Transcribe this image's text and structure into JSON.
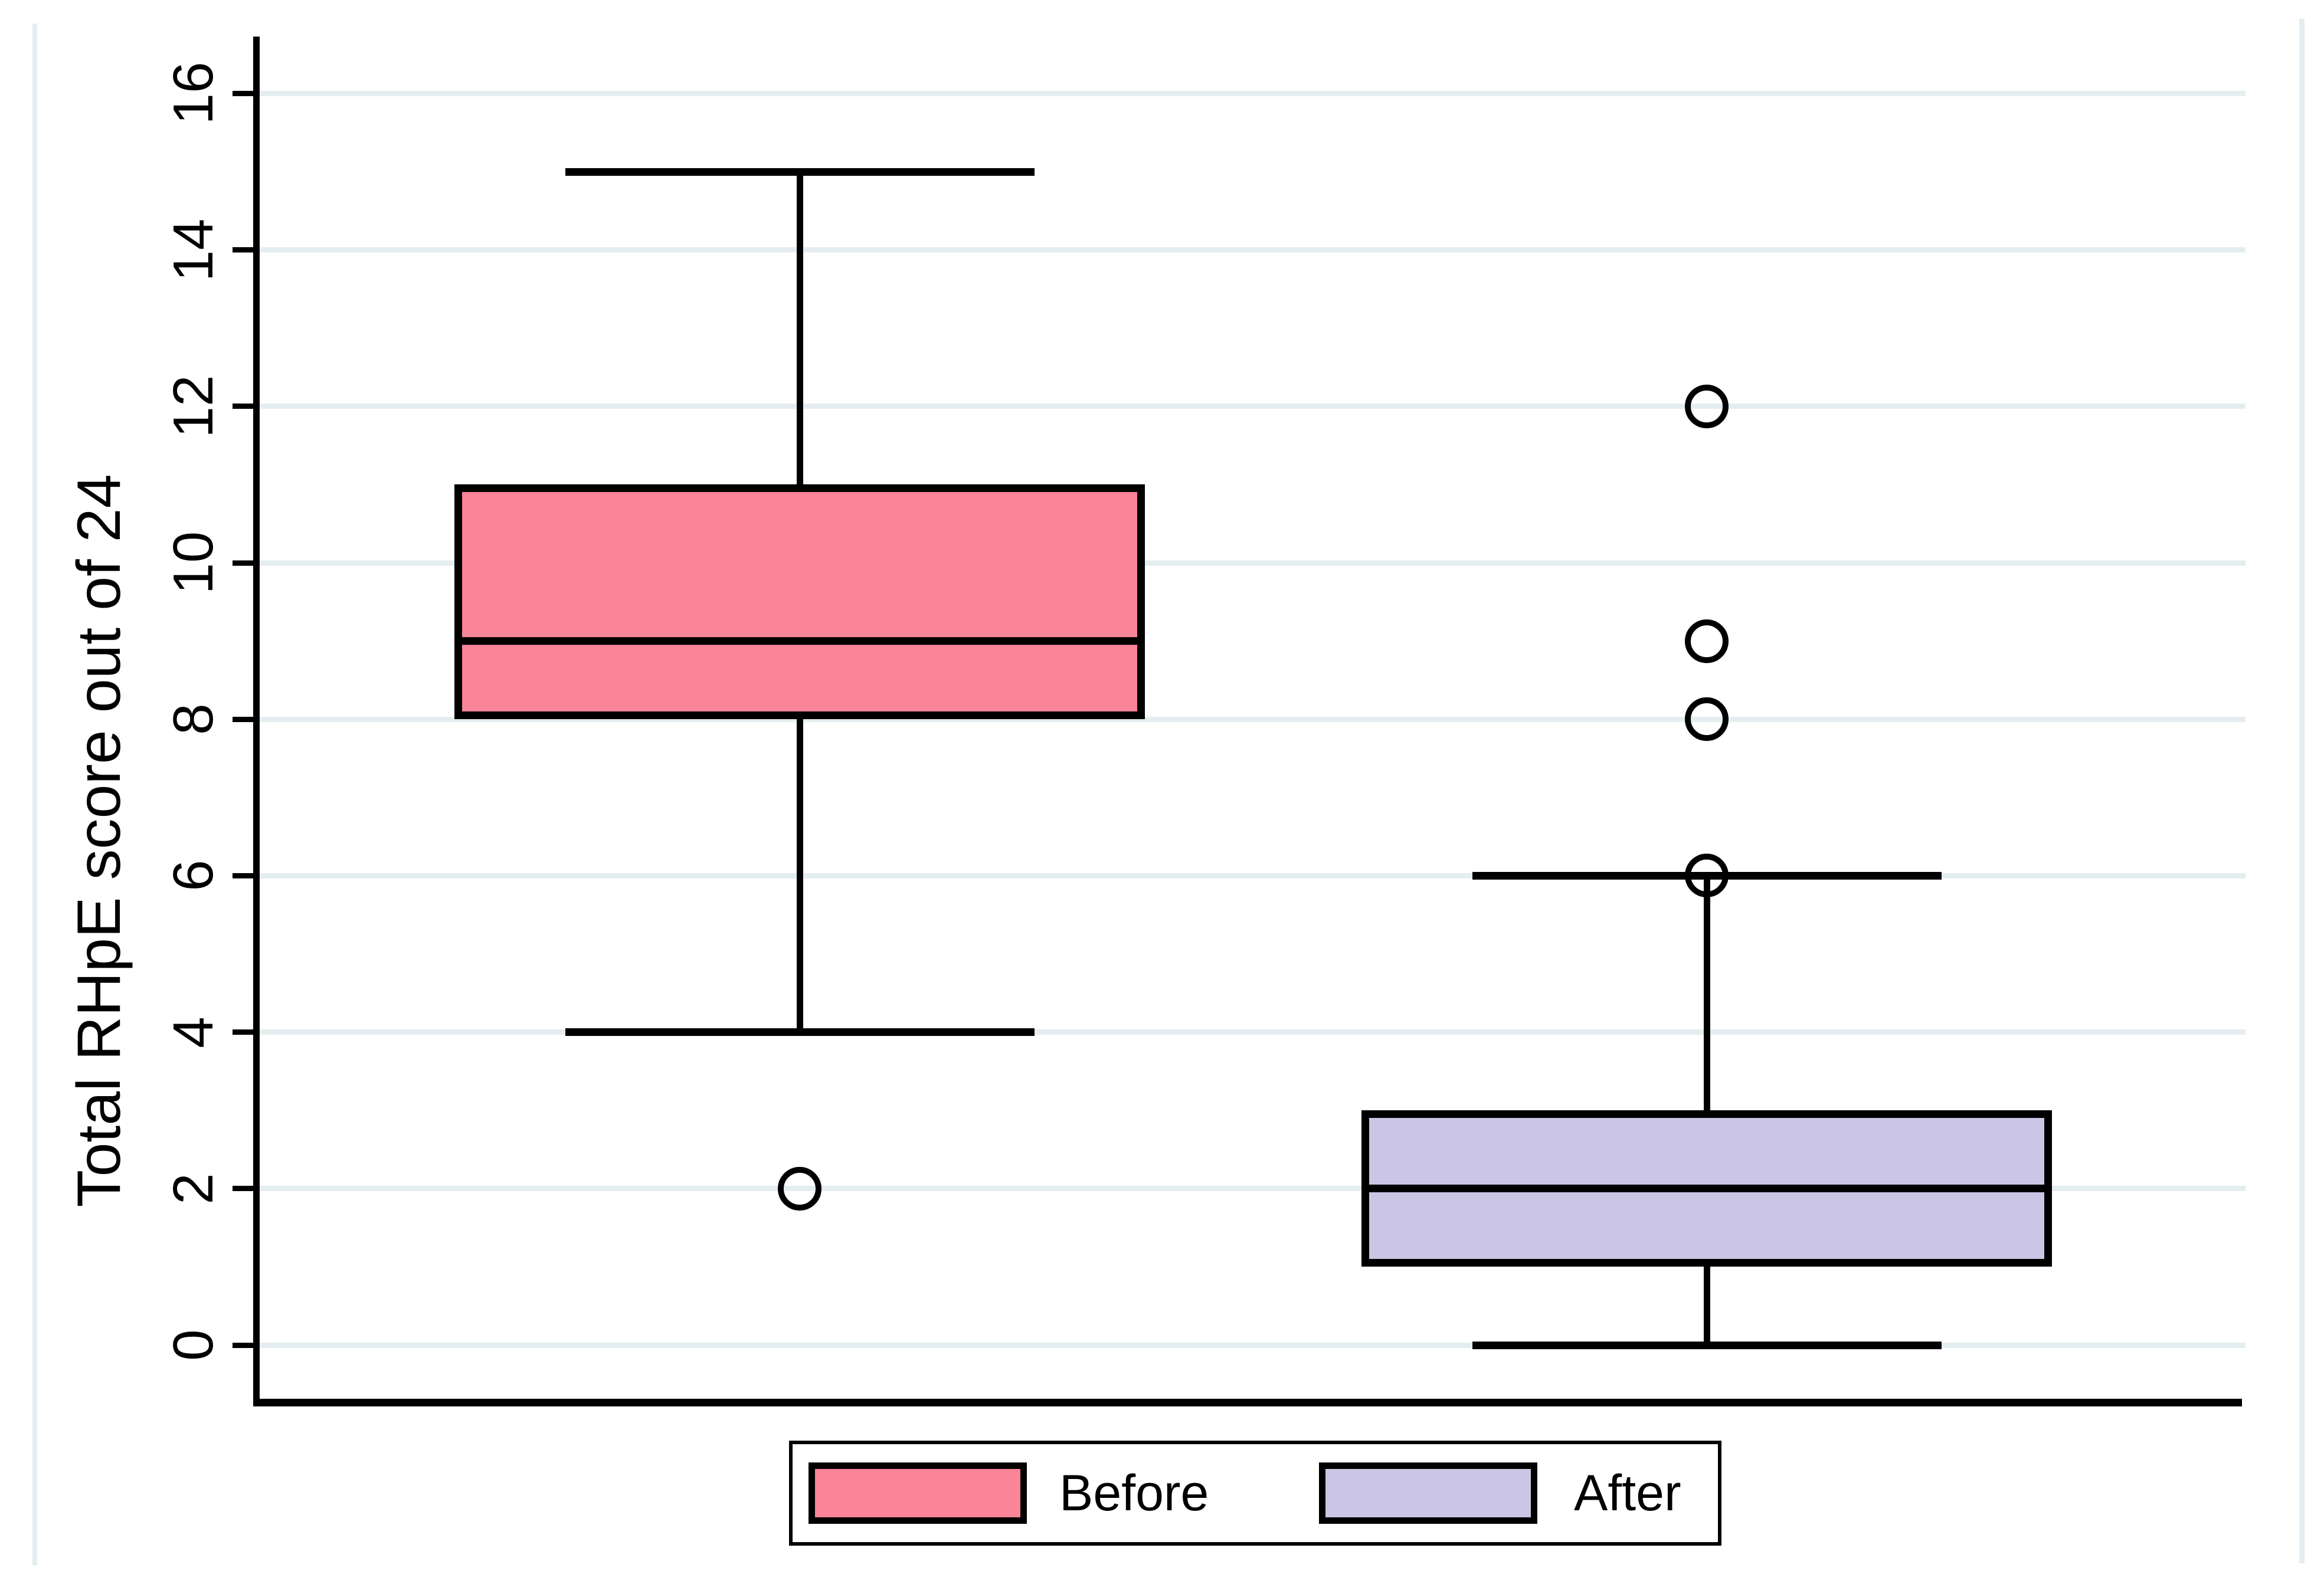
{
  "figure": {
    "background_color": "#ffffff",
    "frame_color": "#e4eef0",
    "gridline_color": "#e4eef0",
    "line_color": "#000000"
  },
  "legend": {
    "items": [
      {
        "label": "Before",
        "color": "#FA8498"
      },
      {
        "label": "After",
        "color": "#CBC6E5"
      }
    ]
  },
  "chart_data": {
    "type": "boxplot",
    "orientation": "vertical",
    "title": "",
    "xlabel": "",
    "ylabel": "Total RHpE score out of 24",
    "ylim": [
      0,
      16
    ],
    "yticks": [
      0,
      2,
      4,
      6,
      8,
      10,
      12,
      14,
      16
    ],
    "grid": "horizontal",
    "legend_position": "bottom",
    "groups": [
      {
        "label": "Before",
        "fill": "#FA8498",
        "median": 9,
        "q1": 8,
        "q3": 11,
        "whisker_low": 4,
        "whisker_high": 15,
        "outliers": [
          2
        ]
      },
      {
        "label": "After",
        "fill": "#CBC6E5",
        "median": 2,
        "q1": 1,
        "q3": 3,
        "whisker_low": 0,
        "whisker_high": 6,
        "outliers": [
          6,
          8,
          9,
          12
        ]
      }
    ]
  }
}
